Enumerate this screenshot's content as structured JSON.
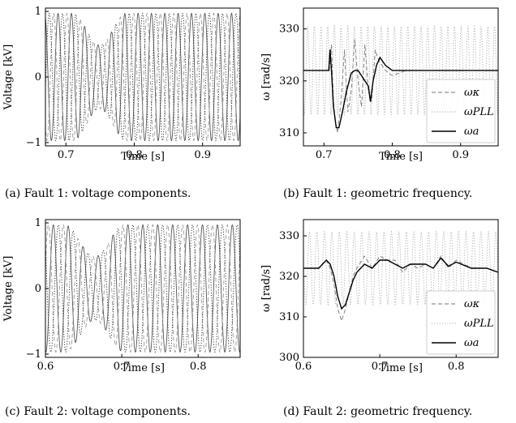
{
  "chart_data": [
    {
      "id": "a",
      "type": "line",
      "caption": "(a) Fault 1: voltage components.",
      "xlabel": "Time [s]",
      "ylabel": "Voltage [kV]",
      "xlim": [
        0.67,
        0.955
      ],
      "ylim": [
        -1.05,
        1.05
      ],
      "xticks": [
        0.7,
        0.8,
        0.9
      ],
      "xtick_labels": [
        "0.7",
        "0.8",
        "0.9"
      ],
      "yticks": [
        -1,
        0,
        1
      ],
      "ytick_labels": [
        "−1",
        "0",
        "1"
      ],
      "series": [
        {
          "style": "solid",
          "color": "#555555",
          "freq_hz": 51.2,
          "amp": 0.97,
          "phase": 0.0
        },
        {
          "style": "dashed",
          "color": "#999999",
          "freq_hz": 51.2,
          "amp": 0.97,
          "phase": 2.09
        },
        {
          "style": "dotted",
          "color": "#222222",
          "freq_hz": 51.2,
          "amp": 0.97,
          "phase": 4.19
        }
      ],
      "fault_time": 0.71
    },
    {
      "id": "b",
      "type": "line",
      "caption": "(b) Fault 1: geometric frequency.",
      "xlabel": "Time [s]",
      "ylabel": "ω [rad/s]",
      "xlim": [
        0.67,
        0.955
      ],
      "ylim": [
        307.5,
        334
      ],
      "xticks": [
        0.7,
        0.8,
        0.9
      ],
      "xtick_labels": [
        "0.7",
        "0.8",
        "0.9"
      ],
      "yticks": [
        310,
        320,
        330
      ],
      "ytick_labels": [
        "310",
        "320",
        "330"
      ],
      "legend": {
        "position": "lower-right",
        "entries": [
          "ωκ",
          "ωPLL",
          "ωa"
        ]
      },
      "series": [
        {
          "name": "ωκ",
          "style": "dashed",
          "color": "#777777",
          "x": [
            0.67,
            0.7,
            0.708,
            0.711,
            0.714,
            0.717,
            0.72,
            0.725,
            0.73,
            0.735,
            0.74,
            0.745,
            0.75,
            0.755,
            0.76,
            0.765,
            0.77,
            0.775,
            0.78,
            0.79,
            0.8,
            0.82,
            0.86,
            0.9,
            0.955
          ],
          "y": [
            322,
            322,
            322,
            327,
            316,
            312,
            310,
            316,
            326,
            314,
            318,
            328,
            320,
            315,
            327,
            318,
            316,
            326,
            324,
            322,
            321,
            322,
            322,
            322,
            322
          ]
        },
        {
          "name": "ωPLL",
          "style": "dotted",
          "color": "#aaaaaa",
          "osc": true,
          "center": 322,
          "amp": 8.5,
          "freq_hz": 102.4,
          "start": 0.67
        },
        {
          "name": "ωa",
          "style": "solid",
          "color": "#000000",
          "x": [
            0.67,
            0.7,
            0.707,
            0.709,
            0.711,
            0.714,
            0.718,
            0.722,
            0.727,
            0.733,
            0.74,
            0.745,
            0.75,
            0.755,
            0.76,
            0.765,
            0.768,
            0.772,
            0.777,
            0.782,
            0.79,
            0.8,
            0.83,
            0.86,
            0.9,
            0.955
          ],
          "y": [
            322,
            322,
            322,
            326,
            322,
            315,
            311,
            311,
            314,
            318,
            321.5,
            322,
            322,
            321,
            320,
            319,
            316,
            320,
            323,
            324.5,
            323,
            322,
            322,
            322,
            322,
            322
          ]
        }
      ]
    },
    {
      "id": "c",
      "type": "line",
      "caption": "(c) Fault  2: voltage components.",
      "xlabel": "Time [s]",
      "ylabel": "Voltage [kV]",
      "xlim": [
        0.6,
        0.855
      ],
      "ylim": [
        -1.05,
        1.05
      ],
      "xticks": [
        0.6,
        0.7,
        0.8
      ],
      "xtick_labels": [
        "0.6",
        "0.7",
        "0.8"
      ],
      "yticks": [
        -1,
        0,
        1
      ],
      "ytick_labels": [
        "−1",
        "0",
        "1"
      ],
      "series": [
        {
          "style": "solid",
          "color": "#555555",
          "freq_hz": 51.2,
          "amp": 0.97,
          "phase": 0.0
        },
        {
          "style": "dashed",
          "color": "#999999",
          "freq_hz": 51.2,
          "amp": 0.97,
          "phase": 2.09
        },
        {
          "style": "dotted",
          "color": "#222222",
          "freq_hz": 51.2,
          "amp": 0.97,
          "phase": 4.19
        }
      ],
      "fault_time": 0.625
    },
    {
      "id": "d",
      "type": "line",
      "caption": "(d) Fault 2: geometric frequency.",
      "xlabel": "Time [s]",
      "ylabel": "ω [rad/s]",
      "xlim": [
        0.6,
        0.855
      ],
      "ylim": [
        300,
        334
      ],
      "xticks": [
        0.6,
        0.7,
        0.8
      ],
      "xtick_labels": [
        "0.6",
        "0.7",
        "0.8"
      ],
      "yticks": [
        300,
        310,
        320,
        330
      ],
      "ytick_labels": [
        "300",
        "310",
        "320",
        "330"
      ],
      "legend": {
        "position": "lower-right",
        "entries": [
          "ωκ",
          "ωPLL",
          "ωa"
        ]
      },
      "series": [
        {
          "name": "ωκ",
          "style": "dashed",
          "color": "#777777",
          "x": [
            0.6,
            0.62,
            0.625,
            0.63,
            0.635,
            0.64,
            0.645,
            0.65,
            0.655,
            0.66,
            0.665,
            0.67,
            0.68,
            0.69,
            0.7,
            0.71,
            0.72,
            0.73,
            0.74,
            0.75,
            0.76,
            0.77,
            0.78,
            0.79,
            0.8,
            0.82,
            0.84,
            0.855
          ],
          "y": [
            322,
            322,
            323,
            324,
            322,
            318,
            312,
            309,
            312,
            316,
            320,
            322,
            325,
            322,
            325,
            324,
            324,
            321,
            323,
            322,
            323,
            322,
            325,
            322,
            324,
            322,
            322,
            321
          ]
        },
        {
          "name": "ωPLL",
          "style": "dotted",
          "color": "#aaaaaa",
          "osc": true,
          "center": 322,
          "amp": 9,
          "freq_hz": 102.4,
          "start": 0.6
        },
        {
          "name": "ωa",
          "style": "solid",
          "color": "#000000",
          "x": [
            0.6,
            0.62,
            0.625,
            0.63,
            0.635,
            0.64,
            0.645,
            0.65,
            0.655,
            0.66,
            0.665,
            0.67,
            0.68,
            0.69,
            0.7,
            0.71,
            0.72,
            0.73,
            0.74,
            0.75,
            0.76,
            0.77,
            0.78,
            0.79,
            0.8,
            0.82,
            0.84,
            0.855
          ],
          "y": [
            322,
            322,
            323,
            324,
            323,
            320,
            315,
            312,
            313,
            316,
            319,
            321,
            323,
            322,
            324,
            324,
            323,
            322,
            323,
            323,
            323,
            322,
            324.5,
            322.5,
            323.5,
            322,
            322,
            321
          ]
        }
      ]
    }
  ]
}
